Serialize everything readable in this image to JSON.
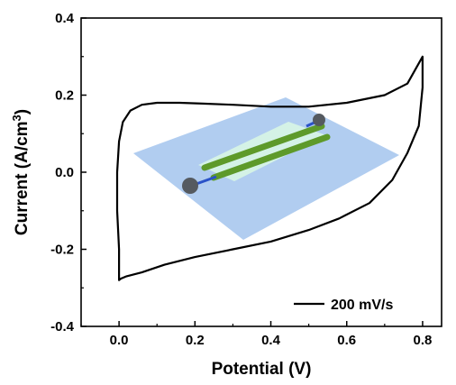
{
  "chart_data": {
    "type": "line",
    "xlabel": "Potential (V)",
    "ylabel": "Current (A/cm",
    "ylabel_superscript": "3",
    "ylabel_suffix": ")",
    "xlim": [
      -0.1,
      0.85
    ],
    "ylim": [
      -0.4,
      0.4
    ],
    "x_ticks": [
      "0.0",
      "0.2",
      "0.4",
      "0.6",
      "0.8"
    ],
    "y_ticks": [
      "-0.4",
      "-0.2",
      "0.0",
      "0.2",
      "0.4"
    ],
    "grid": false,
    "legend_position": "bottom-right",
    "series": [
      {
        "name": "200 mV/s",
        "color": "#000000",
        "x": [
          0.0,
          0.0,
          -0.005,
          -0.005,
          0.0,
          0.01,
          0.03,
          0.06,
          0.1,
          0.16,
          0.22,
          0.3,
          0.4,
          0.5,
          0.6,
          0.7,
          0.76,
          0.8,
          0.8,
          0.79,
          0.76,
          0.72,
          0.66,
          0.58,
          0.5,
          0.4,
          0.3,
          0.2,
          0.12,
          0.06,
          0.02,
          0.005,
          0.0
        ],
        "y": [
          -0.28,
          -0.2,
          -0.1,
          0.0,
          0.08,
          0.13,
          0.16,
          0.175,
          0.18,
          0.18,
          0.178,
          0.175,
          0.17,
          0.17,
          0.18,
          0.2,
          0.23,
          0.3,
          0.22,
          0.12,
          0.05,
          -0.02,
          -0.08,
          -0.12,
          -0.15,
          -0.18,
          -0.2,
          -0.22,
          -0.24,
          -0.26,
          -0.27,
          -0.276,
          -0.28
        ]
      }
    ]
  },
  "inset": {
    "substrate_color": "#a8c8ee",
    "electrode_color": "#d4f2e6",
    "wire_color": "#5e9a2a",
    "contact_color": "#555a60",
    "lead_color": "#2a52c8"
  }
}
